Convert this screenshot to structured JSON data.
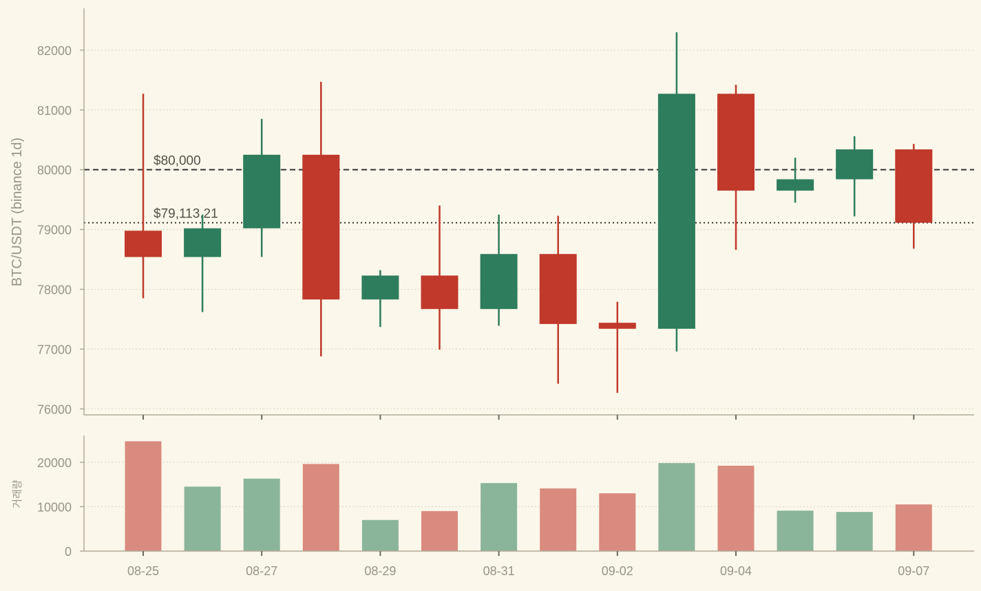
{
  "chart_data": {
    "type": "candlestick",
    "ylabel": "BTC/USDT (binance 1d)",
    "volume_label": "거래량",
    "price_ylim": [
      75900,
      82700
    ],
    "price_ticks": [
      76000,
      77000,
      78000,
      79000,
      80000,
      81000,
      82000
    ],
    "volume_ylim": [
      0,
      26000
    ],
    "volume_ticks": [
      0,
      10000,
      20000
    ],
    "x_tick_labels": [
      {
        "label": "08-25",
        "index": 0
      },
      {
        "label": "08-27",
        "index": 2
      },
      {
        "label": "08-29",
        "index": 4
      },
      {
        "label": "08-31",
        "index": 6
      },
      {
        "label": "09-02",
        "index": 8
      },
      {
        "label": "09-04",
        "index": 10
      },
      {
        "label": "09-07",
        "index": 13
      }
    ],
    "reference_lines": [
      {
        "value": 80000,
        "label": "$80,000",
        "style": "dashed"
      },
      {
        "value": 79113.21,
        "label": "$79,113.21",
        "style": "dotted"
      }
    ],
    "colors": {
      "up": "#2e7d5c",
      "down": "#c0392b",
      "up_volume": "#8bb59b",
      "down_volume": "#d98b7f",
      "background": "#fbf7ea",
      "axis": "#b3a998",
      "text": "#9a9488",
      "reference_line": "#333333"
    },
    "grid": true,
    "candles": [
      {
        "open": 78980,
        "high": 81270,
        "low": 77850,
        "close": 78540,
        "volume": 24700
      },
      {
        "open": 78540,
        "high": 79250,
        "low": 77620,
        "close": 79020,
        "volume": 14500
      },
      {
        "open": 79020,
        "high": 80850,
        "low": 78540,
        "close": 80250,
        "volume": 16300
      },
      {
        "open": 80250,
        "high": 81470,
        "low": 76880,
        "close": 77830,
        "volume": 19600
      },
      {
        "open": 77830,
        "high": 78320,
        "low": 77370,
        "close": 78230,
        "volume": 7000
      },
      {
        "open": 78230,
        "high": 79400,
        "low": 76990,
        "close": 77670,
        "volume": 9000
      },
      {
        "open": 77670,
        "high": 79250,
        "low": 77390,
        "close": 78590,
        "volume": 15300
      },
      {
        "open": 78590,
        "high": 79230,
        "low": 76420,
        "close": 77420,
        "volume": 14100
      },
      {
        "open": 77440,
        "high": 77790,
        "low": 76270,
        "close": 77340,
        "volume": 13000
      },
      {
        "open": 77340,
        "high": 82300,
        "low": 76960,
        "close": 81270,
        "volume": 19800
      },
      {
        "open": 81270,
        "high": 81420,
        "low": 78660,
        "close": 79650,
        "volume": 19200
      },
      {
        "open": 79650,
        "high": 80200,
        "low": 79450,
        "close": 79840,
        "volume": 9100
      },
      {
        "open": 79840,
        "high": 80560,
        "low": 79220,
        "close": 80340,
        "volume": 8800
      },
      {
        "open": 80340,
        "high": 80430,
        "low": 78680,
        "close": 79113.21,
        "volume": 10500
      }
    ]
  }
}
